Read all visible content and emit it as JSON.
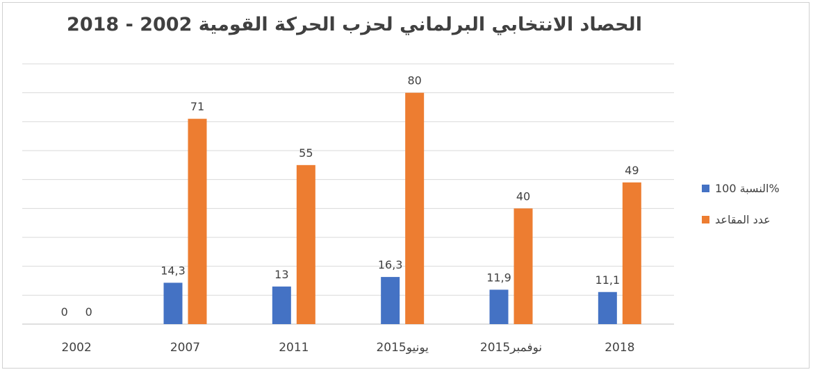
{
  "chart_data": {
    "type": "bar",
    "title": "الحصاد الانتخابي البرلماني لحزب الحركة القومية 2002 - 2018",
    "categories": [
      "2002",
      "2007",
      "2011",
      "يونيو2015",
      "نوفمبر2015",
      "2018"
    ],
    "series": [
      {
        "name": "النسبة 100%",
        "color": "#4472C4",
        "values": [
          0,
          14.3,
          13,
          16.3,
          11.9,
          11.1
        ],
        "labels": [
          "0",
          "14,3",
          "13",
          "16,3",
          "11,9",
          "11,1"
        ]
      },
      {
        "name": "عدد المقاعد",
        "color": "#ED7D31",
        "values": [
          0,
          71,
          55,
          80,
          40,
          49
        ],
        "labels": [
          "0",
          "71",
          "55",
          "80",
          "40",
          "49"
        ]
      }
    ],
    "ylim": [
      0,
      90
    ],
    "grid": true,
    "legend_position": "right"
  }
}
